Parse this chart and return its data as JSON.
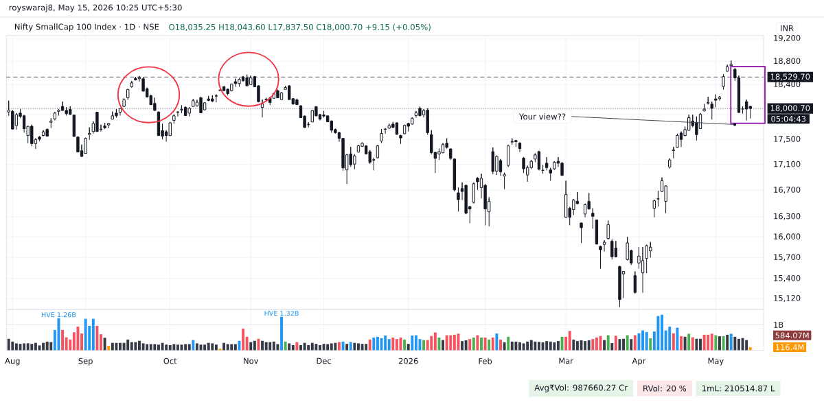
{
  "chart_data": [
    {
      "type": "candlestick",
      "title": "Nifty SmallCap 100 Index · 1D · NSE",
      "subtitle": "O18,035.25 H18,043.60 L17,837.50 C18,000.70 +9.15 (+0.05%)",
      "ylabel": "INR",
      "categories": [
        null,
        null,
        null,
        null,
        null,
        null,
        null,
        null,
        null,
        null,
        null,
        null,
        null,
        null,
        null,
        null,
        null,
        null,
        null,
        null,
        null,
        null,
        null,
        null,
        null,
        null,
        null,
        null,
        null,
        null,
        null,
        null,
        null,
        null,
        null,
        null,
        null,
        null,
        null,
        null,
        null,
        null,
        null,
        null,
        null,
        null,
        null,
        null,
        null,
        null,
        null,
        null,
        null,
        null,
        null,
        null,
        null,
        null,
        null,
        null,
        null,
        null,
        null,
        null,
        null,
        null,
        null,
        null,
        null,
        null,
        null,
        null,
        null,
        null,
        null,
        null,
        null,
        null,
        null,
        null,
        null,
        null,
        null,
        null,
        null,
        null,
        null,
        null,
        null,
        null,
        null,
        null,
        null,
        null,
        null,
        null,
        null,
        null,
        null,
        null,
        null,
        null,
        null,
        null,
        null,
        null,
        null,
        null,
        null,
        null,
        null,
        null,
        null,
        null,
        null,
        null,
        null,
        null,
        null,
        null,
        null,
        null,
        null,
        null,
        null,
        null,
        null,
        null,
        null,
        null,
        null,
        null,
        null,
        null,
        null,
        null,
        null,
        null,
        null,
        null,
        null,
        null,
        null,
        null,
        null,
        null,
        null,
        null,
        null,
        null,
        null,
        null,
        null,
        null,
        null,
        null,
        null,
        null,
        null,
        null,
        null,
        null,
        null,
        null,
        null,
        null,
        null,
        null,
        null,
        null,
        null,
        null,
        null,
        null,
        null,
        null,
        null,
        null,
        null,
        null,
        null,
        null,
        null,
        null,
        null,
        null,
        null,
        null,
        null,
        null,
        null,
        null,
        null,
        null
      ],
      "ohlc": [
        [
          17945,
          18130,
          17880,
          17975
        ],
        [
          17955,
          17975,
          17655,
          17665
        ],
        [
          17720,
          17925,
          17655,
          17900
        ],
        [
          17925,
          17990,
          17840,
          17870
        ],
        [
          17880,
          17895,
          17605,
          17670
        ],
        [
          17560,
          17720,
          17435,
          17705
        ],
        [
          17710,
          17735,
          17385,
          17430
        ],
        [
          17430,
          17515,
          17345,
          17495
        ],
        [
          17535,
          17550,
          17470,
          17500
        ],
        [
          17560,
          17645,
          17545,
          17620
        ],
        [
          17660,
          17670,
          17545,
          17550
        ],
        [
          17775,
          17840,
          17680,
          17795
        ],
        [
          17830,
          17945,
          17805,
          17925
        ],
        [
          17955,
          17990,
          17885,
          17975
        ],
        [
          18035,
          18115,
          17960,
          17970
        ],
        [
          17970,
          18020,
          17885,
          17915
        ],
        [
          17985,
          18035,
          17895,
          17905
        ],
        [
          17895,
          17900,
          17535,
          17545
        ],
        [
          17535,
          17545,
          17290,
          17295
        ],
        [
          17315,
          17415,
          17215,
          17225
        ],
        [
          17275,
          17525,
          17270,
          17515
        ],
        [
          17575,
          17690,
          17490,
          17595
        ],
        [
          17625,
          17790,
          17590,
          17755
        ],
        [
          17940,
          17945,
          17620,
          17625
        ],
        [
          17655,
          17735,
          17625,
          17665
        ],
        [
          17715,
          17765,
          17665,
          17685
        ],
        [
          17730,
          17765,
          17680,
          17755
        ],
        [
          17825,
          17950,
          17820,
          17880
        ],
        [
          17925,
          17990,
          17850,
          17880
        ],
        [
          17940,
          18005,
          17885,
          18000
        ],
        [
          18035,
          18170,
          18025,
          18145
        ],
        [
          18180,
          18330,
          18145,
          18315
        ],
        [
          18365,
          18460,
          18345,
          18430
        ],
        [
          18505,
          18530,
          18470,
          18480
        ],
        [
          18500,
          18545,
          18450,
          18520
        ],
        [
          18500,
          18530,
          18280,
          18290
        ],
        [
          18330,
          18350,
          18180,
          18195
        ],
        [
          18215,
          18230,
          18055,
          18065
        ],
        [
          18085,
          18180,
          17960,
          17970
        ],
        [
          17940,
          17955,
          17550,
          17560
        ],
        [
          17640,
          17750,
          17495,
          17550
        ],
        [
          17620,
          17645,
          17460,
          17560
        ],
        [
          17560,
          17780,
          17550,
          17765
        ],
        [
          17805,
          17905,
          17750,
          17880
        ],
        [
          17935,
          17955,
          17870,
          17945
        ],
        [
          17975,
          18055,
          17925,
          17985
        ],
        [
          18020,
          18035,
          17880,
          17885
        ],
        [
          17925,
          18020,
          17870,
          18005
        ],
        [
          18035,
          18160,
          18030,
          18130
        ],
        [
          18045,
          18145,
          18030,
          18105
        ],
        [
          18180,
          18195,
          17925,
          17930
        ],
        [
          17980,
          18105,
          17970,
          18095
        ],
        [
          18160,
          18210,
          18120,
          18135
        ],
        [
          18160,
          18220,
          18105,
          18125
        ],
        [
          18205,
          18235,
          18105,
          18215
        ],
        [
          18300,
          18325,
          18290,
          18310
        ],
        [
          18365,
          18375,
          18290,
          18300
        ],
        [
          18325,
          18335,
          18220,
          18250
        ],
        [
          18300,
          18420,
          18285,
          18410
        ],
        [
          18450,
          18500,
          18365,
          18420
        ],
        [
          18420,
          18515,
          18365,
          18490
        ],
        [
          18530,
          18545,
          18450,
          18465
        ],
        [
          18515,
          18570,
          18375,
          18380
        ],
        [
          18400,
          18555,
          18390,
          18515
        ],
        [
          18535,
          18545,
          18355,
          18365
        ],
        [
          18380,
          18390,
          18105,
          18115
        ],
        [
          18020,
          18150,
          17855,
          18075
        ],
        [
          18145,
          18180,
          18115,
          18155
        ],
        [
          18175,
          18195,
          18055,
          18100
        ],
        [
          18170,
          18265,
          18165,
          18250
        ],
        [
          18300,
          18315,
          18170,
          18180
        ],
        [
          18150,
          18275,
          18145,
          18260
        ],
        [
          18320,
          18380,
          18315,
          18350
        ],
        [
          18380,
          18390,
          18145,
          18150
        ],
        [
          18165,
          18170,
          18065,
          18075
        ],
        [
          18145,
          18165,
          18060,
          18065
        ],
        [
          18045,
          18055,
          17840,
          17850
        ],
        [
          17875,
          17885,
          17680,
          17690
        ],
        [
          17735,
          17775,
          17690,
          17740
        ],
        [
          17780,
          17980,
          17775,
          17970
        ],
        [
          18030,
          18035,
          17870,
          17880
        ],
        [
          17900,
          17910,
          17805,
          17825
        ],
        [
          17895,
          17960,
          17850,
          17875
        ],
        [
          17880,
          17885,
          17775,
          17785
        ],
        [
          17795,
          17805,
          17605,
          17645
        ],
        [
          17655,
          17670,
          17590,
          17605
        ],
        [
          17605,
          17620,
          17460,
          17515
        ],
        [
          17515,
          17520,
          17000,
          17045
        ],
        [
          17015,
          17265,
          16795,
          17250
        ],
        [
          17265,
          17375,
          17060,
          17095
        ],
        [
          17105,
          17260,
          17025,
          17235
        ],
        [
          17295,
          17410,
          17285,
          17395
        ],
        [
          17385,
          17450,
          17375,
          17435
        ],
        [
          17395,
          17405,
          17260,
          17265
        ],
        [
          17300,
          17325,
          17105,
          17135
        ],
        [
          17165,
          17205,
          17005,
          17175
        ],
        [
          17205,
          17410,
          17195,
          17395
        ],
        [
          17470,
          17665,
          17440,
          17595
        ],
        [
          17660,
          17680,
          17590,
          17665
        ],
        [
          17680,
          17755,
          17665,
          17720
        ],
        [
          17745,
          17780,
          17680,
          17690
        ],
        [
          17765,
          17775,
          17570,
          17580
        ],
        [
          17560,
          17570,
          17425,
          17520
        ],
        [
          17590,
          17735,
          17580,
          17725
        ],
        [
          17755,
          17765,
          17625,
          17710
        ],
        [
          17745,
          17855,
          17735,
          17840
        ],
        [
          17885,
          17960,
          17850,
          17930
        ],
        [
          18005,
          18035,
          17870,
          17885
        ],
        [
          17895,
          17990,
          17855,
          17970
        ],
        [
          17975,
          18005,
          17570,
          17605
        ],
        [
          17575,
          17645,
          17260,
          17285
        ],
        [
          17290,
          17295,
          16965,
          17195
        ],
        [
          17265,
          17350,
          17170,
          17300
        ],
        [
          17285,
          17440,
          17275,
          17415
        ],
        [
          17435,
          17515,
          17350,
          17370
        ],
        [
          17345,
          17350,
          17170,
          17195
        ],
        [
          17185,
          17195,
          16680,
          16705
        ],
        [
          16660,
          16740,
          16375,
          16555
        ],
        [
          16725,
          16820,
          16550,
          16680
        ],
        [
          16775,
          16785,
          16335,
          16350
        ],
        [
          16450,
          16460,
          16200,
          16415
        ],
        [
          16515,
          16820,
          16495,
          16800
        ],
        [
          16885,
          16900,
          16705,
          16830
        ],
        [
          16740,
          16955,
          16575,
          16885
        ],
        [
          16775,
          16795,
          16170,
          16415
        ],
        [
          16375,
          16590,
          16155,
          16530
        ],
        [
          17300,
          17370,
          16945,
          16990
        ],
        [
          16995,
          17240,
          16935,
          17225
        ],
        [
          17160,
          17185,
          16920,
          16985
        ],
        [
          16920,
          16970,
          16715,
          16945
        ],
        [
          17085,
          17405,
          17060,
          17395
        ],
        [
          17455,
          17515,
          17410,
          17465
        ],
        [
          17480,
          17485,
          17375,
          17460
        ],
        [
          17440,
          17450,
          17295,
          17350
        ],
        [
          17200,
          17215,
          16965,
          17030
        ],
        [
          16935,
          17080,
          16830,
          17050
        ],
        [
          17050,
          17170,
          17025,
          17150
        ],
        [
          17185,
          17275,
          17135,
          17250
        ],
        [
          17300,
          17315,
          17005,
          17025
        ],
        [
          17005,
          17095,
          16955,
          17010
        ],
        [
          17120,
          17215,
          17005,
          17050
        ],
        [
          17015,
          17045,
          16845,
          16965
        ],
        [
          17030,
          17150,
          17015,
          17135
        ],
        [
          17150,
          17215,
          17060,
          17120
        ],
        [
          17120,
          17135,
          16920,
          16930
        ],
        [
          16290,
          16845,
          16280,
          16635
        ],
        [
          16425,
          16445,
          16170,
          16290
        ],
        [
          16405,
          16565,
          16325,
          16550
        ],
        [
          16530,
          16670,
          16485,
          16495
        ],
        [
          16205,
          16210,
          15910,
          16135
        ],
        [
          16340,
          16495,
          16290,
          16480
        ],
        [
          16530,
          16655,
          16405,
          16415
        ],
        [
          16350,
          16425,
          16120,
          16305
        ],
        [
          16250,
          16255,
          15885,
          15895
        ],
        [
          15860,
          15870,
          15540,
          15810
        ],
        [
          15890,
          15950,
          15785,
          15920
        ],
        [
          15975,
          16240,
          15960,
          16180
        ],
        [
          15935,
          15960,
          15670,
          15710
        ],
        [
          15835,
          15940,
          15700,
          15710
        ],
        [
          15570,
          15580,
          15000,
          15105
        ],
        [
          15465,
          15505,
          15125,
          15500
        ],
        [
          15670,
          16000,
          15655,
          15910
        ],
        [
          15800,
          15810,
          15590,
          15620
        ],
        [
          15440,
          15500,
          15185,
          15205
        ],
        [
          15620,
          15850,
          15540,
          15720
        ],
        [
          15480,
          15850,
          15200,
          15655
        ],
        [
          15685,
          15885,
          15475,
          15870
        ],
        [
          15795,
          15925,
          15700,
          15850
        ],
        [
          16425,
          16555,
          16290,
          16540
        ],
        [
          16565,
          16690,
          16450,
          16570
        ],
        [
          16680,
          16895,
          16670,
          16845
        ],
        [
          16530,
          16775,
          16350,
          16765
        ],
        [
          17060,
          17195,
          17035,
          17170
        ],
        [
          17320,
          17375,
          17195,
          17330
        ],
        [
          17370,
          17590,
          17360,
          17560
        ],
        [
          17600,
          17625,
          17375,
          17495
        ],
        [
          17560,
          17705,
          17545,
          17655
        ],
        [
          17645,
          17900,
          17635,
          17850
        ],
        [
          17795,
          17900,
          17690,
          17720
        ],
        [
          17775,
          17870,
          17480,
          17575
        ],
        [
          17670,
          17925,
          17665,
          17905
        ],
        [
          17960,
          18075,
          17955,
          17990
        ],
        [
          18090,
          18195,
          18065,
          18100
        ],
        [
          18075,
          18115,
          17820,
          18005
        ],
        [
          18160,
          18235,
          18020,
          18140
        ],
        [
          18165,
          18210,
          18130,
          18190
        ],
        [
          18370,
          18575,
          18315,
          18535
        ],
        [
          18630,
          18740,
          18615,
          18705
        ],
        [
          18725,
          18810,
          18715,
          18745
        ],
        [
          18660,
          18685,
          18460,
          18515
        ],
        [
          18515,
          18555,
          17925,
          17935
        ],
        [
          17990,
          18035,
          17915,
          17995
        ],
        [
          18115,
          18150,
          17805,
          17991.55
        ],
        [
          18035.25,
          18043.6,
          17837.5,
          18000.7
        ]
      ],
      "color": "#131722",
      "log": true,
      "ylim": [
        14970,
        19250
      ],
      "yticks": [
        {
          "value": 19200,
          "label": "19,200"
        },
        {
          "value": 18800,
          "label": "18,800"
        },
        {
          "value": 18400,
          "label": "18,400"
        },
        {
          "value": 17900,
          "label": null
        },
        {
          "value": 17500,
          "label": "17,500"
        },
        {
          "value": 17100,
          "label": "17,100"
        },
        {
          "value": 16700,
          "label": "16,700"
        },
        {
          "value": 16300,
          "label": "16,300"
        },
        {
          "value": 16000,
          "label": "16,000"
        },
        {
          "value": 15700,
          "label": "15,700"
        },
        {
          "value": 15400,
          "label": "15,400"
        },
        {
          "value": 15120,
          "label": "15,120"
        }
      ],
      "grid": true,
      "tick_labels": "y",
      "ref_lines": [
        {
          "axis": "y",
          "value": 18529.7,
          "label": "18,529.70",
          "line_style": "dashed",
          "color": "#5d606b"
        },
        {
          "axis": "y",
          "value": 18000.7,
          "label": "18,000.70",
          "line_style": "dotted",
          "color": "#5d606b"
        }
      ],
      "annotations": [
        "royswaraj8, May 15, 2026 10:25 UTC+5:30",
        "Your view??",
        "05:04:43"
      ]
    },
    {
      "type": "bar",
      "categories": [
        null,
        "Aug",
        null,
        null,
        null,
        null,
        null,
        null,
        null,
        null,
        null,
        null,
        null,
        null,
        null,
        null,
        null,
        null,
        null,
        null,
        "Sep",
        null,
        null,
        null,
        null,
        null,
        null,
        null,
        null,
        null,
        null,
        null,
        null,
        null,
        null,
        null,
        null,
        null,
        null,
        null,
        null,
        null,
        "Oct",
        null,
        null,
        null,
        null,
        null,
        null,
        null,
        null,
        null,
        null,
        null,
        null,
        null,
        null,
        null,
        null,
        null,
        null,
        null,
        null,
        "Nov",
        null,
        null,
        null,
        null,
        null,
        null,
        null,
        null,
        null,
        null,
        null,
        null,
        null,
        null,
        null,
        null,
        null,
        null,
        "Dec",
        null,
        null,
        null,
        null,
        null,
        null,
        null,
        null,
        null,
        null,
        null,
        null,
        null,
        null,
        null,
        null,
        null,
        null,
        null,
        null,
        null,
        "2026",
        null,
        null,
        null,
        null,
        null,
        null,
        null,
        null,
        null,
        null,
        null,
        null,
        null,
        null,
        null,
        null,
        null,
        null,
        null,
        "Feb",
        null,
        null,
        null,
        null,
        null,
        null,
        null,
        null,
        null,
        null,
        null,
        null,
        null,
        null,
        null,
        null,
        null,
        null,
        null,
        null,
        "Mar",
        null,
        null,
        null,
        null,
        null,
        null,
        null,
        null,
        null,
        null,
        null,
        null,
        null,
        null,
        null,
        null,
        null,
        null,
        "Apr",
        null,
        null,
        null,
        null,
        null,
        null,
        null,
        null,
        null,
        null,
        null,
        null,
        null,
        null,
        null,
        null,
        null,
        null,
        null,
        "May",
        null,
        null,
        null,
        null,
        null,
        null,
        null,
        null,
        null
      ],
      "values": [
        450,
        340,
        270,
        250,
        270,
        270,
        250,
        290,
        190,
        290,
        340,
        320,
        800,
        1260,
        800,
        510,
        420,
        710,
        930,
        660,
        1240,
        960,
        1240,
        960,
        630,
        490,
        170,
        290,
        290,
        290,
        290,
        420,
        320,
        320,
        370,
        270,
        240,
        240,
        240,
        220,
        290,
        220,
        200,
        240,
        220,
        220,
        240,
        240,
        400,
        270,
        220,
        220,
        290,
        270,
        220,
        60,
        290,
        240,
        240,
        240,
        370,
        850,
        530,
        320,
        370,
        450,
        370,
        320,
        320,
        340,
        240,
        1320,
        340,
        270,
        200,
        320,
        200,
        290,
        200,
        290,
        250,
        200,
        250,
        240,
        270,
        290,
        320,
        340,
        250,
        320,
        290,
        270,
        250,
        250,
        420,
        500,
        530,
        470,
        580,
        440,
        500,
        440,
        500,
        420,
        250,
        580,
        590,
        440,
        400,
        400,
        560,
        700,
        500,
        400,
        590,
        590,
        610,
        650,
        360,
        390,
        440,
        500,
        590,
        500,
        500,
        420,
        500,
        660,
        420,
        310,
        530,
        340,
        340,
        310,
        270,
        340,
        400,
        340,
        330,
        310,
        360,
        340,
        310,
        360,
        530,
        530,
        760,
        420,
        360,
        390,
        360,
        390,
        440,
        500,
        560,
        400,
        590,
        280,
        570,
        440,
        450,
        590,
        440,
        590,
        670,
        780,
        720,
        470,
        740,
        1350,
        1400,
        780,
        930,
        670,
        890,
        550,
        530,
        650,
        510,
        450,
        450,
        610,
        610,
        650,
        590,
        550,
        550,
        610,
        650,
        530,
        450,
        480,
        400,
        116.4
      ],
      "colors": [
        "#363a45",
        "#363a45",
        "#363a45",
        "#363a45",
        "#363a45",
        "#363a45",
        "#363a45",
        "#363a45",
        "#363a45",
        "#363a45",
        "#363a45",
        "#363a45",
        "#2196f3",
        "#2196f3",
        "#f7525f",
        "#f7525f",
        "#f7525f",
        "#f7525f",
        "#f7525f",
        "#f7525f",
        "#2196f3",
        "#2196f3",
        "#2196f3",
        "#f7525f",
        "#f7525f",
        "#363a45",
        "#ff9800",
        "#363a45",
        "#363a45",
        "#363a45",
        "#363a45",
        "#363a45",
        "#363a45",
        "#363a45",
        "#363a45",
        "#363a45",
        "#363a45",
        "#363a45",
        "#363a45",
        "#363a45",
        "#363a45",
        "#363a45",
        "#363a45",
        "#363a45",
        "#363a45",
        "#363a45",
        "#363a45",
        "#363a45",
        "#2196f3",
        "#363a45",
        "#363a45",
        "#363a45",
        "#363a45",
        "#363a45",
        "#363a45",
        "#ff9800",
        "#363a45",
        "#363a45",
        "#363a45",
        "#363a45",
        "#2196f3",
        "#f7525f",
        "#f7525f",
        "#363a45",
        "#363a45",
        "#f7525f",
        "#363a45",
        "#363a45",
        "#363a45",
        "#363a45",
        "#363a45",
        "#2196f3",
        "#4caf50",
        "#363a45",
        "#363a45",
        "#f7525f",
        "#363a45",
        "#363a45",
        "#363a45",
        "#363a45",
        "#363a45",
        "#363a45",
        "#363a45",
        "#363a45",
        "#363a45",
        "#363a45",
        "#f7525f",
        "#2196f3",
        "#363a45",
        "#2196f3",
        "#363a45",
        "#363a45",
        "#363a45",
        "#363a45",
        "#f7525f",
        "#2196f3",
        "#2196f3",
        "#2196f3",
        "#2196f3",
        "#2196f3",
        "#f7525f",
        "#f7525f",
        "#f7525f",
        "#4caf50",
        "#363a45",
        "#2196f3",
        "#2196f3",
        "#2196f3",
        "#4caf50",
        "#f7525f",
        "#f7525f",
        "#f7525f",
        "#4caf50",
        "#363a45",
        "#f7525f",
        "#f7525f",
        "#f7525f",
        "#f7525f",
        "#363a45",
        "#363a45",
        "#f7525f",
        "#4caf50",
        "#f7525f",
        "#4caf50",
        "#f7525f",
        "#4caf50",
        "#f7525f",
        "#2196f3",
        "#f7525f",
        "#363a45",
        "#4caf50",
        "#363a45",
        "#363a45",
        "#363a45",
        "#363a45",
        "#363a45",
        "#363a45",
        "#363a45",
        "#363a45",
        "#363a45",
        "#363a45",
        "#363a45",
        "#363a45",
        "#363a45",
        "#4caf50",
        "#f7525f",
        "#f7525f",
        "#363a45",
        "#363a45",
        "#363a45",
        "#363a45",
        "#363a45",
        "#f7525f",
        "#f7525f",
        "#f7525f",
        "#363a45",
        "#4caf50",
        "#363a45",
        "#f7525f",
        "#363a45",
        "#363a45",
        "#4caf50",
        "#363a45",
        "#f7525f",
        "#2196f3",
        "#2196f3",
        "#2196f3",
        "#4caf50",
        "#2196f3",
        "#2196f3",
        "#2196f3",
        "#2196f3",
        "#2196f3",
        "#f7525f",
        "#2196f3",
        "#f7525f",
        "#363a45",
        "#4caf50",
        "#f7525f",
        "#363a45",
        "#363a45",
        "#f7525f",
        "#f7525f",
        "#f7525f",
        "#4caf50",
        "#363a45",
        "#4caf50",
        "#363a45",
        "#2196f3",
        "#363a45",
        "#363a45",
        "#363a45",
        "#363a45",
        "#ff9800"
      ],
      "value_labels": [
        null,
        null,
        null,
        null,
        null,
        null,
        null,
        null,
        null,
        null,
        null,
        null,
        null,
        "HVE 1.26B",
        null,
        null,
        null,
        null,
        null,
        null,
        null,
        null,
        null,
        null,
        null,
        null,
        null,
        null,
        null,
        null,
        null,
        null,
        null,
        null,
        null,
        null,
        null,
        null,
        null,
        null,
        null,
        null,
        null,
        null,
        null,
        null,
        null,
        null,
        null,
        null,
        null,
        null,
        null,
        null,
        null,
        null,
        null,
        null,
        null,
        null,
        null,
        null,
        null,
        null,
        null,
        null,
        null,
        null,
        null,
        null,
        null,
        "HVE 1.32B",
        null,
        null,
        null,
        null,
        null,
        null,
        null,
        null,
        null,
        null,
        null,
        null,
        null,
        null,
        null,
        null,
        null,
        null,
        null,
        null,
        null,
        null,
        null,
        null,
        null,
        null,
        null,
        null,
        null,
        null,
        null,
        null,
        null,
        null,
        null,
        null,
        null,
        null,
        null,
        null,
        null,
        null,
        null,
        null,
        null,
        null,
        null,
        null,
        null,
        null,
        null,
        null,
        null,
        null,
        null,
        null,
        null,
        null,
        null,
        null,
        null,
        null,
        null,
        null,
        null,
        null,
        null,
        null,
        null,
        null,
        null,
        null,
        null,
        null,
        null,
        null,
        null,
        null,
        null,
        null,
        null,
        null,
        null,
        null,
        null,
        null,
        null,
        null,
        null,
        null,
        null,
        null,
        null,
        null,
        null,
        null,
        null,
        null,
        null,
        null,
        null,
        null,
        null,
        null,
        null,
        null,
        null,
        null,
        null,
        null,
        null,
        null,
        null,
        null,
        null,
        null,
        null,
        null,
        null,
        null,
        null,
        null
      ],
      "ylim": [
        0,
        1610
      ],
      "yticks": [
        {
          "value": 584.07,
          "label": "584.07M"
        },
        {
          "value": 116.4,
          "label": "116.4M"
        }
      ],
      "ref_lines": [
        {
          "axis": "y",
          "value": 1000,
          "label": "1B",
          "color": "#e0e3eb"
        }
      ],
      "grid": "x",
      "annotations": [
        "Avg₹Vol: 987660.27 Cr",
        "RVol: 20 %",
        "1mL: 210514.87 L"
      ]
    }
  ]
}
